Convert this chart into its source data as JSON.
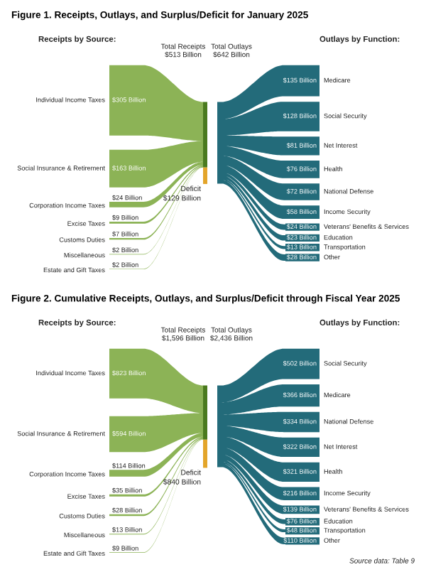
{
  "chart_data": [
    {
      "type": "other",
      "title": "Figure 1. Receipts, Outlays, and Surplus/Deficit for January 2025",
      "annotations": [
        "Receipts by Source:",
        "Outlays by Function:",
        "Total Receipts\n$513 Billion",
        "Total Outlays\n$642 Billion"
      ],
      "categories": [
        "Individual Income Taxes",
        "Social Insurance & Retirement",
        "Corporation Income Taxes",
        "Excise Taxes",
        "Customs Duties",
        "Miscellaneous",
        "Estate and Gift Taxes",
        "Deficit",
        "Medicare",
        "Social Security",
        "Net Interest",
        "Health",
        "National Defense",
        "Income Security",
        "Veterans' Benefits & Services",
        "Education",
        "Transportation",
        "Other"
      ],
      "values": [
        305,
        163,
        24,
        9,
        7,
        2,
        2,
        129,
        135,
        128,
        81,
        76,
        72,
        58,
        24,
        23,
        13,
        28
      ],
      "value_labels": [
        "$305 Billion",
        "$163 Billion",
        "$24 Billion",
        "$9 Billion",
        "$7 Billion",
        "$2 Billion",
        "$2 Billion",
        "$129 Billion",
        "$135 Billion",
        "$128 Billion",
        "$81 Billion",
        "$76 Billion",
        "$72 Billion",
        "$58 Billion",
        "$24 Billion",
        "$23 Billion",
        "$13 Billion",
        "$28 Billion"
      ],
      "colors": [
        "#8cb356",
        "#8cb356",
        "#8cb356",
        "#8cb356",
        "#8cb356",
        "#8cb356",
        "#8cb356",
        "#e3a52a",
        "#236b7a",
        "#236b7a",
        "#236b7a",
        "#236b7a",
        "#236b7a",
        "#236b7a",
        "#236b7a",
        "#236b7a",
        "#236b7a",
        "#236b7a"
      ]
    },
    {
      "type": "other",
      "title": "Figure 2. Cumulative Receipts, Outlays, and Surplus/Deficit through Fiscal Year 2025",
      "annotations": [
        "Receipts by Source:",
        "Outlays by Function:",
        "Total Receipts\n$1,596 Billion",
        "Total Outlays\n$2,436 Billion",
        "Source data: Table 9"
      ],
      "categories": [
        "Individual Income Taxes",
        "Social Insurance & Retirement",
        "Corporation Income Taxes",
        "Excise Taxes",
        "Customs Duties",
        "Miscellaneous",
        "Estate and Gift Taxes",
        "Deficit",
        "Social Security",
        "Medicare",
        "National Defense",
        "Net Interest",
        "Health",
        "Income Security",
        "Veterans' Benefits & Services",
        "Education",
        "Transportation",
        "Other"
      ],
      "values": [
        823,
        594,
        114,
        35,
        28,
        13,
        9,
        840,
        502,
        366,
        334,
        322,
        321,
        216,
        139,
        76,
        48,
        110
      ],
      "value_labels": [
        "$823 Billion",
        "$594 Billion",
        "$114 Billion",
        "$35 Billion",
        "$28 Billion",
        "$13 Billion",
        "$9 Billion",
        "$840 Billion",
        "$502 Billion",
        "$366 Billion",
        "$334 Billion",
        "$322 Billion",
        "$321 Billion",
        "$216 Billion",
        "$139 Billion",
        "$76 Billion",
        "$48 Billion",
        "$110 Billion"
      ],
      "colors": [
        "#8cb356",
        "#8cb356",
        "#8cb356",
        "#8cb356",
        "#8cb356",
        "#8cb356",
        "#8cb356",
        "#e3a52a",
        "#236b7a",
        "#236b7a",
        "#236b7a",
        "#236b7a",
        "#236b7a",
        "#236b7a",
        "#236b7a",
        "#236b7a",
        "#236b7a",
        "#236b7a"
      ]
    }
  ]
}
